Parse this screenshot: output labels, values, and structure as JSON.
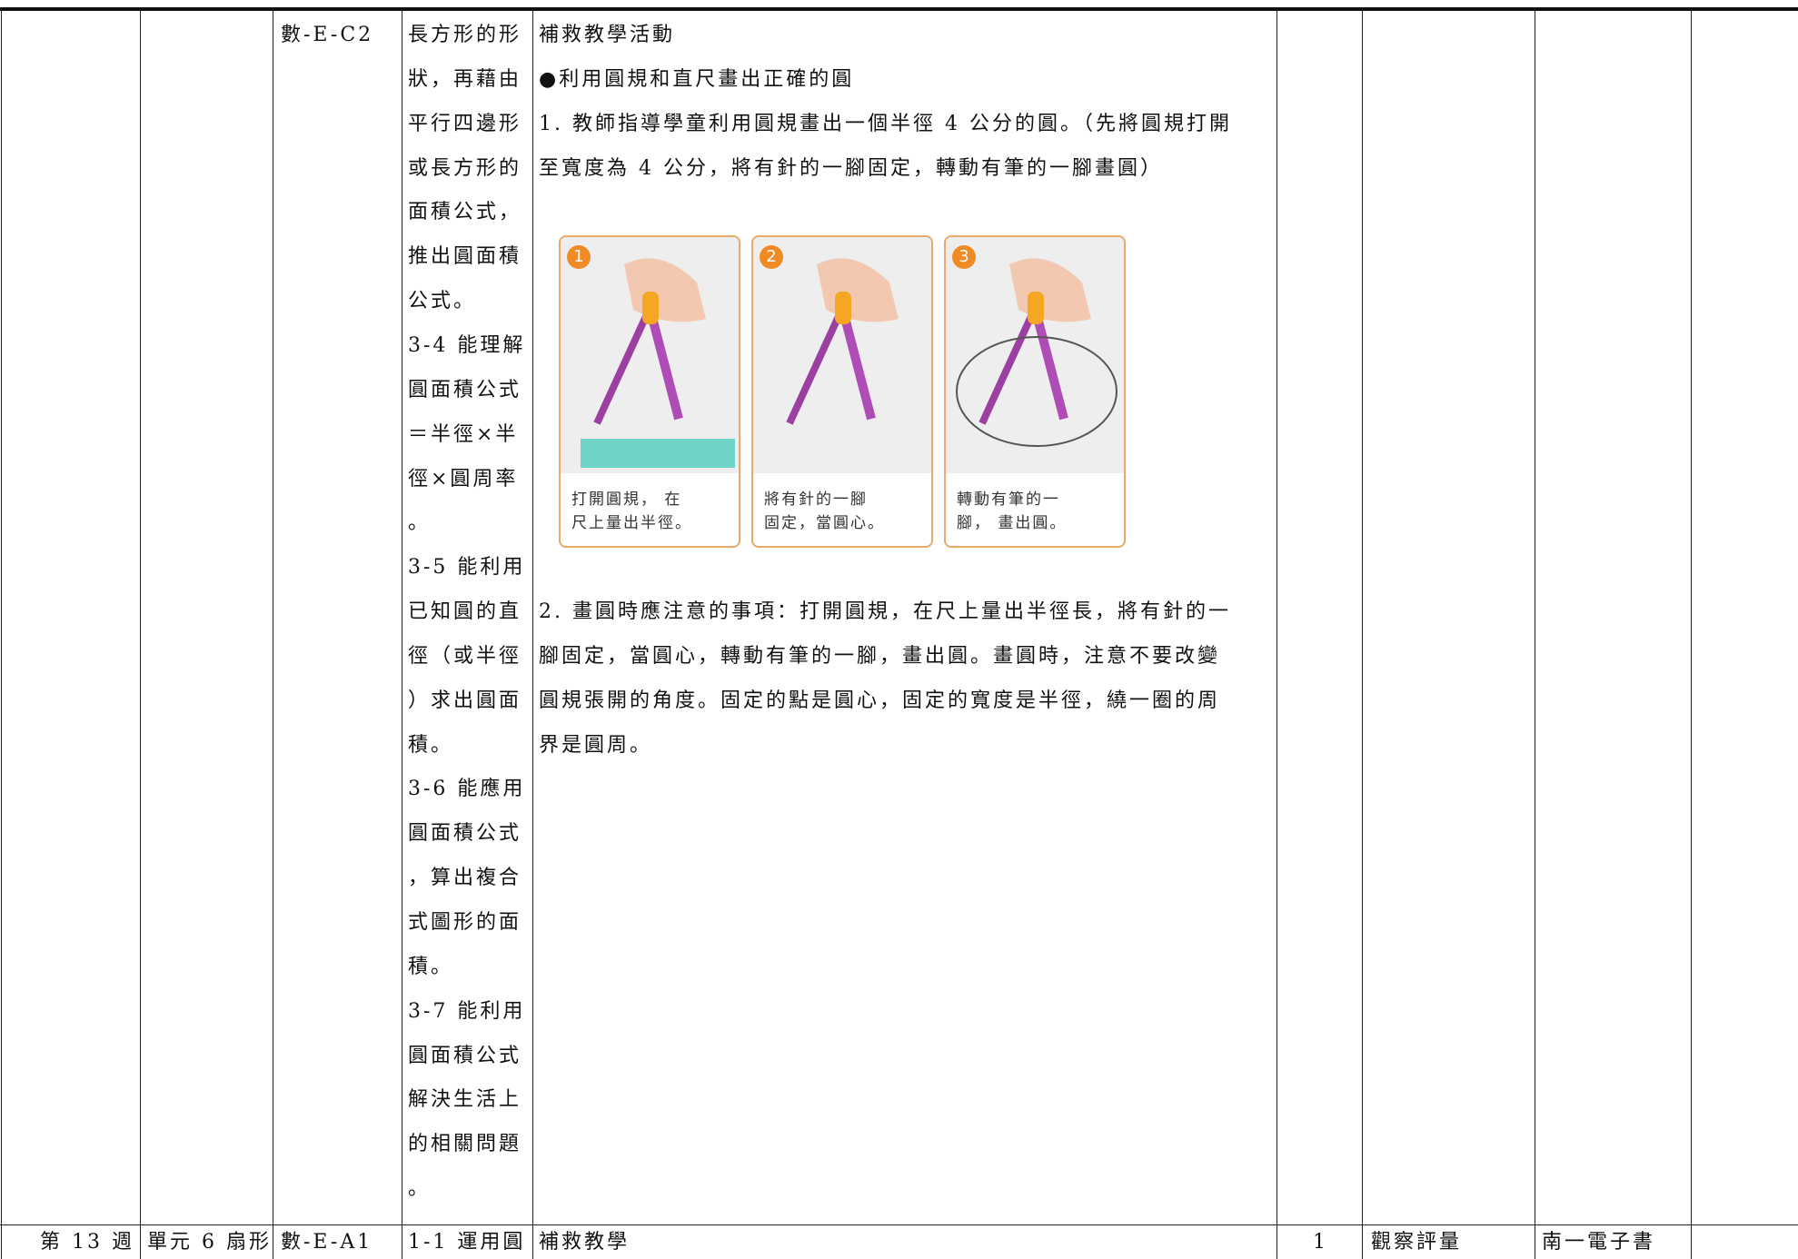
{
  "table": {
    "rows": [
      {
        "code": "數-E-C2",
        "objectives": [
          "長方形的形",
          "狀，再藉由",
          "平行四邊形",
          "或長方形的",
          "面積公式，",
          "推出圓面積",
          "公式。",
          "3-4 能理解",
          "圓面積公式",
          "＝半徑×半",
          "徑×圓周率",
          "。",
          "3-5 能利用",
          "已知圓的直",
          "徑（或半徑",
          "）求出圓面",
          "積。",
          "3-6 能應用",
          "圓面積公式",
          "，算出複合",
          "式圖形的面",
          "積。",
          "3-7 能利用",
          "圓面積公式",
          "解決生活上",
          "的相關問題",
          "。"
        ],
        "activity": {
          "lines_before": [
            "補救教學活動",
            "●利用圓規和直尺畫出正確的圓",
            "1. 教師指導學童利用圓規畫出一個半徑 4 公分的圓。（先將圓規打開",
            "至寬度為 4 公分，將有針的一腳固定，轉動有筆的一腳畫圓）"
          ],
          "figure": [
            {
              "number": "1",
              "caption": [
                "打開圓規， 在",
                "尺上量出半徑。"
              ]
            },
            {
              "number": "2",
              "caption": [
                "將有針的一腳",
                "固定，當圓心。"
              ]
            },
            {
              "number": "3",
              "caption": [
                "轉動有筆的一",
                "腳， 畫出圓。"
              ]
            }
          ],
          "lines_after": [
            "2. 畫圓時應注意的事項：打開圓規，在尺上量出半徑長，將有針的一",
            "腳固定，當圓心，轉動有筆的一腳，畫出圓。畫圓時，注意不要改變",
            "圓規張開的角度。固定的點是圓心，固定的寬度是半徑，繞一圈的周",
            "界是圓周。"
          ]
        }
      },
      {
        "week": "第 13 週",
        "unit": "單元 6 扇形",
        "code": "數-E-A1",
        "objectives": [
          "1-1 運用圓"
        ],
        "activity": "補救教學",
        "periods": 1,
        "assessment": "觀察評量",
        "resource": "南一電子書"
      }
    ]
  }
}
